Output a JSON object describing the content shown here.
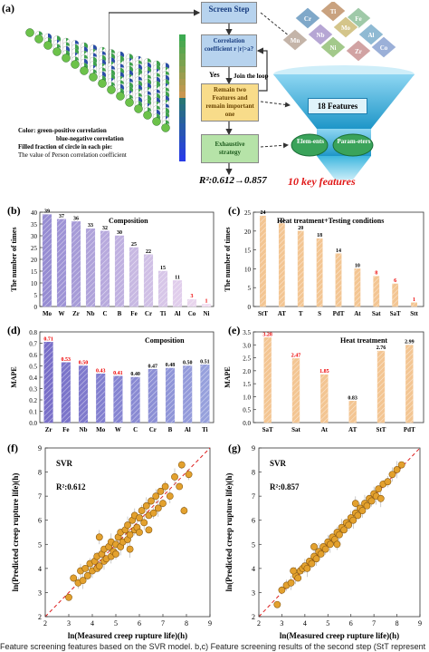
{
  "panel_labels": {
    "a": "(a)",
    "b": "(b)",
    "c": "(c)",
    "d": "(d)",
    "e": "(e)",
    "f": "(f)",
    "g": "(g)"
  },
  "panel_a": {
    "legend": [
      "Color: green-positive correlation",
      "blue-negative correlation",
      "Filled fraction of circle in each pie:",
      "The value of Person correlation coefficient"
    ],
    "flow": {
      "screen_step": "Screen Step",
      "corr": "Correlation coefficient r |r|>a?",
      "yes": "Yes",
      "join_loop": "Join the loop",
      "remain": "Remain two Features and remain important one",
      "exhaustive": "Exhaustive strategy",
      "r2": "R²:0.612→0.857",
      "features18": "18 Features",
      "elements": "Elem-ents",
      "parameters": "Param-eters",
      "key": "10 key features"
    },
    "periodic_tiles": [
      "Cr",
      "Ti",
      "Fe",
      "Nb",
      "Mo",
      "Al",
      "Mn",
      "Ni",
      "Zr",
      "Co"
    ]
  },
  "chart_data": [
    {
      "type": "bar",
      "panel": "b",
      "title": "Composition",
      "ylabel": "The number of times",
      "ylim": [
        0,
        40
      ],
      "categories": [
        "Mo",
        "W",
        "Zr",
        "Nb",
        "C",
        "B",
        "Fe",
        "Cr",
        "Ti",
        "Al",
        "Co",
        "Ni"
      ],
      "values": [
        39,
        37,
        36,
        33,
        32,
        30,
        25,
        22,
        15,
        11,
        3,
        1
      ],
      "value_colors": [
        "#000",
        "#000",
        "#000",
        "#000",
        "#000",
        "#000",
        "#000",
        "#000",
        "#000",
        "#000",
        "#e00",
        "#e00"
      ]
    },
    {
      "type": "bar",
      "panel": "c",
      "title": "Heat treatment+Testing conditions",
      "ylabel": "The number of times",
      "ylim": [
        0,
        25
      ],
      "categories": [
        "StT",
        "AT",
        "T",
        "S",
        "PdT",
        "At",
        "Sat",
        "SaT",
        "Stt"
      ],
      "values": [
        24,
        22,
        20,
        18,
        14,
        10,
        8,
        6,
        1
      ],
      "value_colors": [
        "#000",
        "#000",
        "#000",
        "#000",
        "#000",
        "#000",
        "#e00",
        "#e00",
        "#e00"
      ]
    },
    {
      "type": "bar",
      "panel": "d",
      "title": "Composition",
      "ylabel": "MAPE",
      "ylim": [
        0,
        0.8
      ],
      "categories": [
        "Zr",
        "Fe",
        "Nb",
        "Mo",
        "W",
        "C",
        "Cr",
        "B",
        "Al",
        "Ti"
      ],
      "values": [
        0.71,
        0.53,
        0.5,
        0.43,
        0.41,
        0.4,
        0.47,
        0.48,
        0.5,
        0.51
      ],
      "value_labels": [
        "0.71",
        "0.53",
        "0.50",
        "0.43",
        "0.41",
        "0.40",
        "0.47",
        "0.48",
        "0.50",
        "0.51"
      ],
      "value_colors": [
        "#e00",
        "#e00",
        "#e00",
        "#e00",
        "#e00",
        "#000",
        "#000",
        "#000",
        "#000",
        "#000"
      ]
    },
    {
      "type": "bar",
      "panel": "e",
      "title": "Heat treatment",
      "ylabel": "MAPE",
      "ylim": [
        0,
        3.5
      ],
      "categories": [
        "SaT",
        "Sat",
        "At",
        "AT",
        "StT",
        "PdT"
      ],
      "values": [
        3.28,
        2.47,
        1.85,
        0.83,
        2.76,
        2.99
      ],
      "value_labels": [
        "3.28",
        "2.47",
        "1.85",
        "0.83",
        "2.76",
        "2.99"
      ],
      "value_colors": [
        "#e00",
        "#e00",
        "#e00",
        "#000",
        "#000",
        "#000"
      ]
    },
    {
      "type": "scatter",
      "panel": "f",
      "model": "SVR",
      "r2": "R²:0.612",
      "xlabel": "ln(Measured creep rupture life)(h)",
      "ylabel": "ln(Predicted creep rupture life)(h)",
      "xlim": [
        2,
        9
      ],
      "ylim": [
        2,
        9
      ],
      "xticks": [
        "2",
        "3",
        "4",
        "5",
        "6",
        "7",
        "8",
        "9"
      ],
      "yticks": [
        "2",
        "3",
        "4",
        "5",
        "6",
        "7",
        "8",
        "9"
      ],
      "points": [
        [
          3.0,
          2.8
        ],
        [
          3.2,
          3.6
        ],
        [
          3.4,
          3.4
        ],
        [
          3.5,
          3.9
        ],
        [
          3.6,
          3.5
        ],
        [
          3.7,
          4.0
        ],
        [
          3.8,
          3.7
        ],
        [
          3.9,
          4.2
        ],
        [
          4.0,
          3.9
        ],
        [
          4.1,
          4.3
        ],
        [
          4.2,
          4.0
        ],
        [
          4.2,
          4.5
        ],
        [
          4.3,
          4.1
        ],
        [
          4.4,
          4.6
        ],
        [
          4.5,
          4.3
        ],
        [
          4.5,
          4.8
        ],
        [
          4.6,
          4.4
        ],
        [
          4.7,
          4.9
        ],
        [
          4.8,
          4.5
        ],
        [
          4.8,
          5.1
        ],
        [
          4.9,
          4.7
        ],
        [
          5.0,
          5.0
        ],
        [
          5.0,
          4.6
        ],
        [
          5.1,
          5.3
        ],
        [
          5.2,
          4.9
        ],
        [
          5.2,
          5.5
        ],
        [
          5.3,
          5.1
        ],
        [
          5.4,
          5.6
        ],
        [
          5.5,
          5.2
        ],
        [
          5.5,
          5.8
        ],
        [
          5.6,
          5.4
        ],
        [
          5.7,
          6.0
        ],
        [
          5.8,
          5.6
        ],
        [
          5.8,
          6.2
        ],
        [
          5.9,
          5.7
        ],
        [
          6.0,
          6.1
        ],
        [
          6.0,
          5.5
        ],
        [
          6.1,
          6.4
        ],
        [
          6.2,
          5.9
        ],
        [
          6.3,
          6.6
        ],
        [
          6.4,
          6.2
        ],
        [
          6.5,
          6.8
        ],
        [
          6.6,
          6.3
        ],
        [
          6.7,
          7.0
        ],
        [
          6.8,
          6.5
        ],
        [
          6.9,
          7.2
        ],
        [
          7.0,
          6.7
        ],
        [
          7.1,
          7.4
        ],
        [
          7.3,
          7.0
        ],
        [
          7.5,
          7.8
        ],
        [
          7.7,
          7.4
        ],
        [
          7.8,
          8.3
        ],
        [
          8.1,
          7.9
        ],
        [
          4.3,
          5.3
        ],
        [
          5.6,
          4.8
        ],
        [
          6.4,
          5.6
        ],
        [
          7.9,
          6.4
        ]
      ]
    },
    {
      "type": "scatter",
      "panel": "g",
      "model": "SVR",
      "r2": "R²:0.857",
      "xlabel": "ln(Measured creep rupture life)(h)",
      "ylabel": "ln(Predicted creep rupture life)(h)",
      "xlim": [
        2,
        9
      ],
      "ylim": [
        2,
        9
      ],
      "xticks": [
        "2",
        "3",
        "4",
        "5",
        "6",
        "7",
        "8",
        "9"
      ],
      "yticks": [
        "2",
        "3",
        "4",
        "5",
        "6",
        "7",
        "8",
        "9"
      ],
      "points": [
        [
          2.8,
          2.5
        ],
        [
          3.0,
          3.1
        ],
        [
          3.2,
          3.3
        ],
        [
          3.4,
          3.4
        ],
        [
          3.6,
          3.7
        ],
        [
          3.7,
          3.6
        ],
        [
          3.8,
          3.9
        ],
        [
          3.9,
          4.0
        ],
        [
          4.0,
          4.1
        ],
        [
          4.1,
          4.0
        ],
        [
          4.2,
          4.3
        ],
        [
          4.3,
          4.2
        ],
        [
          4.4,
          4.5
        ],
        [
          4.5,
          4.4
        ],
        [
          4.6,
          4.7
        ],
        [
          4.7,
          4.6
        ],
        [
          4.8,
          4.9
        ],
        [
          4.9,
          4.8
        ],
        [
          5.0,
          5.1
        ],
        [
          5.1,
          5.0
        ],
        [
          5.2,
          5.3
        ],
        [
          5.3,
          5.2
        ],
        [
          5.4,
          5.5
        ],
        [
          5.5,
          5.4
        ],
        [
          5.6,
          5.7
        ],
        [
          5.7,
          5.6
        ],
        [
          5.8,
          5.9
        ],
        [
          5.9,
          5.8
        ],
        [
          6.0,
          6.1
        ],
        [
          6.1,
          6.0
        ],
        [
          6.2,
          6.3
        ],
        [
          6.3,
          6.2
        ],
        [
          6.4,
          6.5
        ],
        [
          6.5,
          6.4
        ],
        [
          6.6,
          6.7
        ],
        [
          6.7,
          6.6
        ],
        [
          6.8,
          6.9
        ],
        [
          6.9,
          6.8
        ],
        [
          7.0,
          7.1
        ],
        [
          7.1,
          7.0
        ],
        [
          7.2,
          7.3
        ],
        [
          7.4,
          7.5
        ],
        [
          7.6,
          7.6
        ],
        [
          7.8,
          7.9
        ],
        [
          8.0,
          8.1
        ],
        [
          8.2,
          8.3
        ],
        [
          4.4,
          4.9
        ],
        [
          5.4,
          5.0
        ],
        [
          6.2,
          6.7
        ],
        [
          7.3,
          6.9
        ],
        [
          3.5,
          3.9
        ]
      ]
    }
  ],
  "caption": "Feature screening features based on the SVR model. b,c) Feature screening results of the second step (StT represent"
}
